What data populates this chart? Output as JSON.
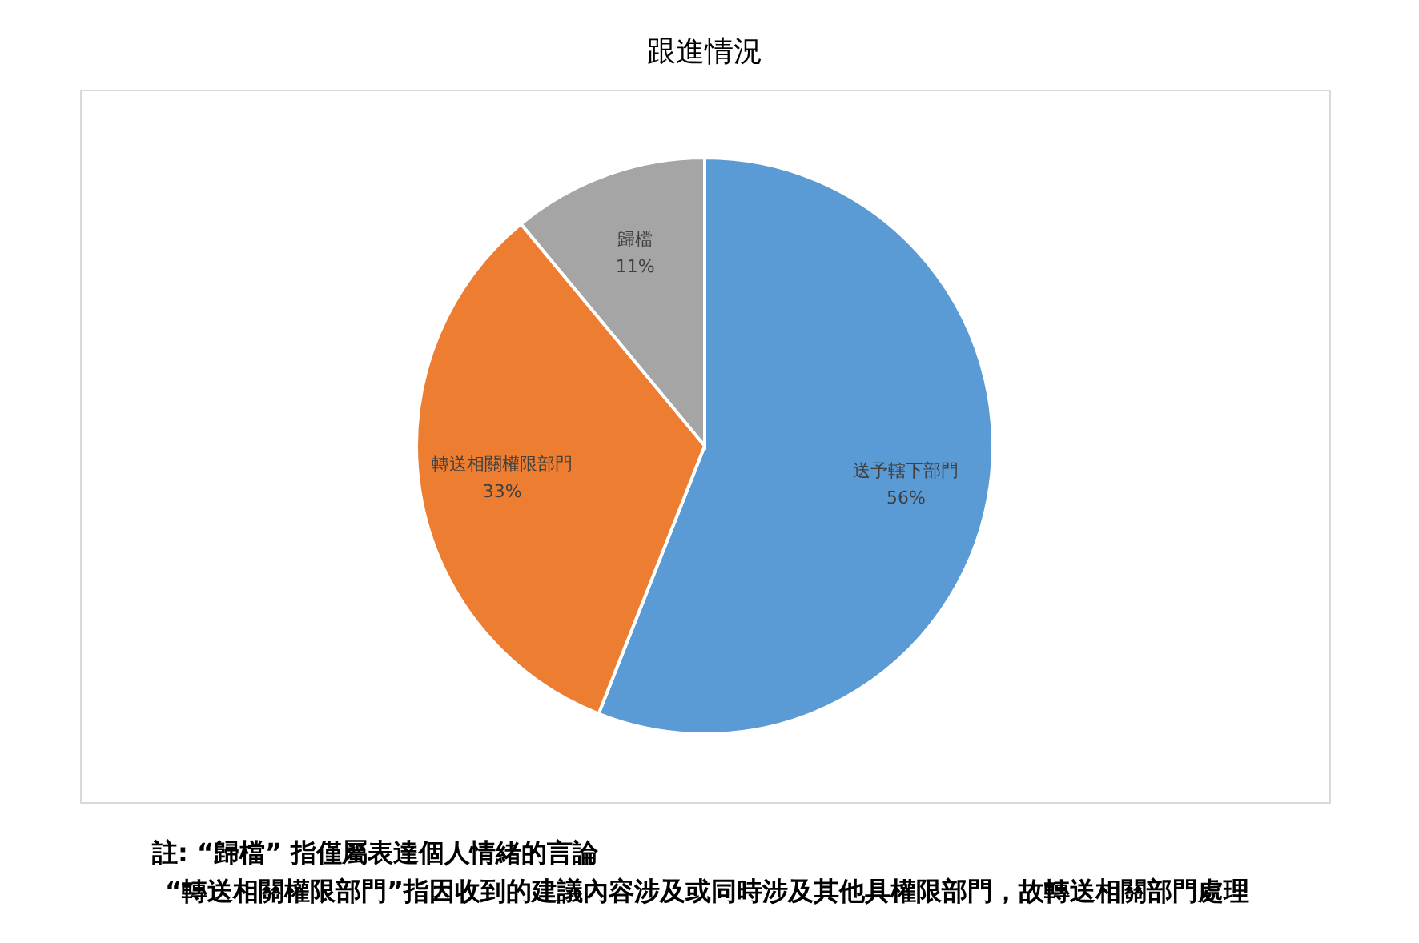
{
  "chart_data": {
    "type": "pie",
    "title": "跟進情況",
    "categories": [
      "送予轄下部門",
      "轉送相關權限部門",
      "歸檔"
    ],
    "values": [
      56,
      33,
      11
    ],
    "colors": [
      "#5b9bd5",
      "#ed7d31",
      "#a5a5a5"
    ],
    "value_labels": [
      "56%",
      "33%",
      "11%"
    ],
    "legend": false,
    "annotations": [
      "註: “歸檔” 指僅屬表達個人情緒的言論",
      "“轉送相關權限部門”指因收到的建議內容涉及或同時涉及其他具權限部門，故轉送相關部門處理"
    ]
  }
}
